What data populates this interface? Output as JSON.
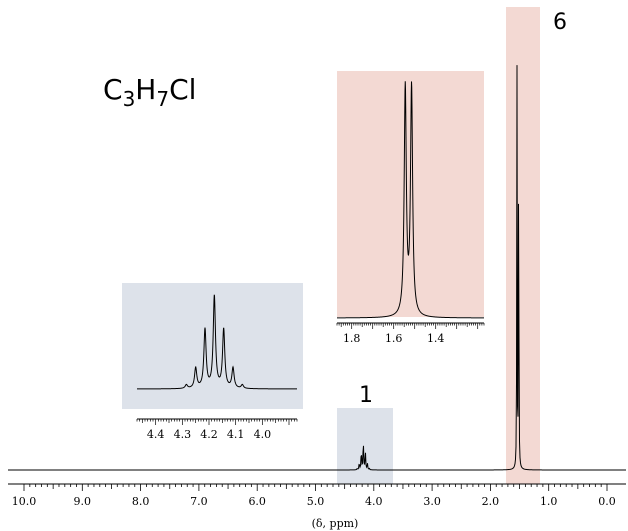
{
  "chart_data": {
    "type": "line",
    "title": "",
    "formula": {
      "base": [
        "C",
        "H",
        "Cl"
      ],
      "subscripts": [
        "3",
        "7"
      ]
    },
    "xlabel": "(δ, ppm)",
    "ylabel": "",
    "x_axis": {
      "range": [
        10.0,
        0.0
      ],
      "reversed": true,
      "tick_labels": [
        "10.0",
        "9.0",
        "8.0",
        "7.0",
        "6.0",
        "5.0",
        "4.0",
        "3.0",
        "2.0",
        "1.0",
        "0.0"
      ]
    },
    "grid": false,
    "signals": [
      {
        "shift_ppm": 4.18,
        "multiplicity": "septet",
        "integration": "1",
        "lines_ppm": [
          4.285,
          4.25,
          4.215,
          4.18,
          4.145,
          4.11,
          4.075
        ],
        "relative_heights": [
          0.04,
          0.22,
          0.64,
          1.0,
          0.64,
          0.22,
          0.04
        ],
        "highlight_color": "#dde2ea"
      },
      {
        "shift_ppm": 1.53,
        "multiplicity": "doublet",
        "integration": "6",
        "lines_ppm": [
          1.545,
          1.515
        ],
        "relative_heights": [
          1.0,
          1.0
        ],
        "highlight_color": "#f3d9d3"
      }
    ],
    "insets": [
      {
        "signal": "septet",
        "x_range": [
          4.47,
          3.87
        ],
        "tick_labels": [
          "4.4",
          "4.3",
          "4.2",
          "4.1",
          "4.0"
        ],
        "background": "#dde2ea"
      },
      {
        "signal": "doublet",
        "x_range": [
          1.87,
          1.17
        ],
        "tick_labels": [
          "1.8",
          "1.6",
          "1.4"
        ],
        "background": "#f3d9d3"
      }
    ]
  }
}
